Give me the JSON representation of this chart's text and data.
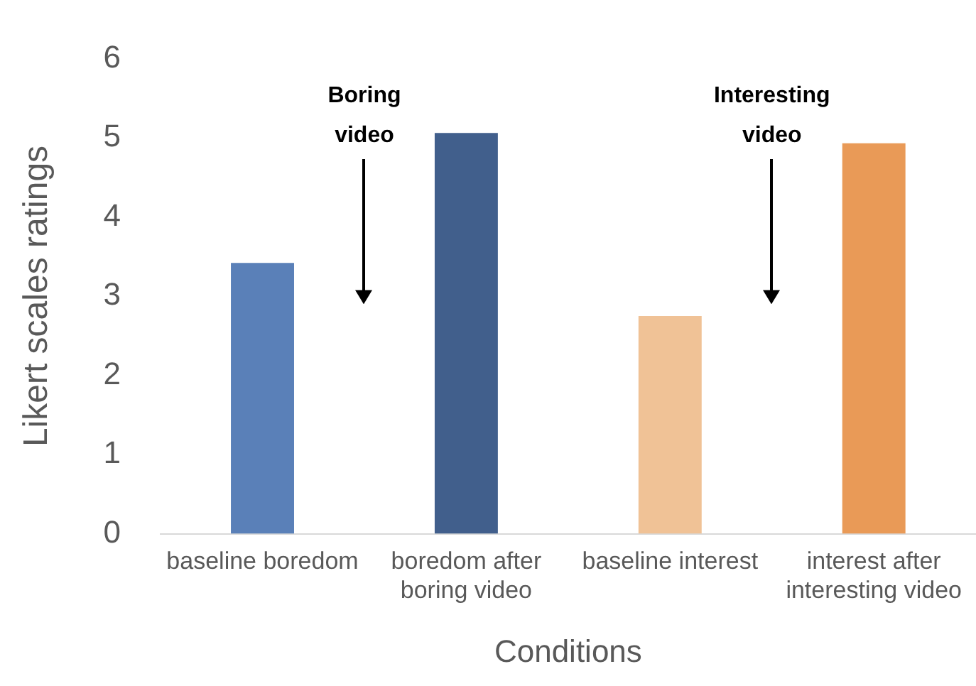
{
  "chart_data": {
    "type": "bar",
    "xlabel": "Conditions",
    "ylabel": "Likert scales ratings",
    "categories": [
      "baseline boredom",
      "boredom after boring video",
      "baseline interest",
      "interest after interesting video"
    ],
    "values": [
      3.42,
      5.06,
      2.75,
      4.93
    ],
    "colors": [
      "#5a80b8",
      "#415f8c",
      "#f0c296",
      "#e99a57"
    ],
    "ylim": [
      0,
      6
    ],
    "yticks": [
      0,
      1,
      2,
      3,
      4,
      5,
      6
    ],
    "grid": false,
    "legend": false,
    "annotations": [
      "Boring video",
      "Interesting video"
    ]
  }
}
